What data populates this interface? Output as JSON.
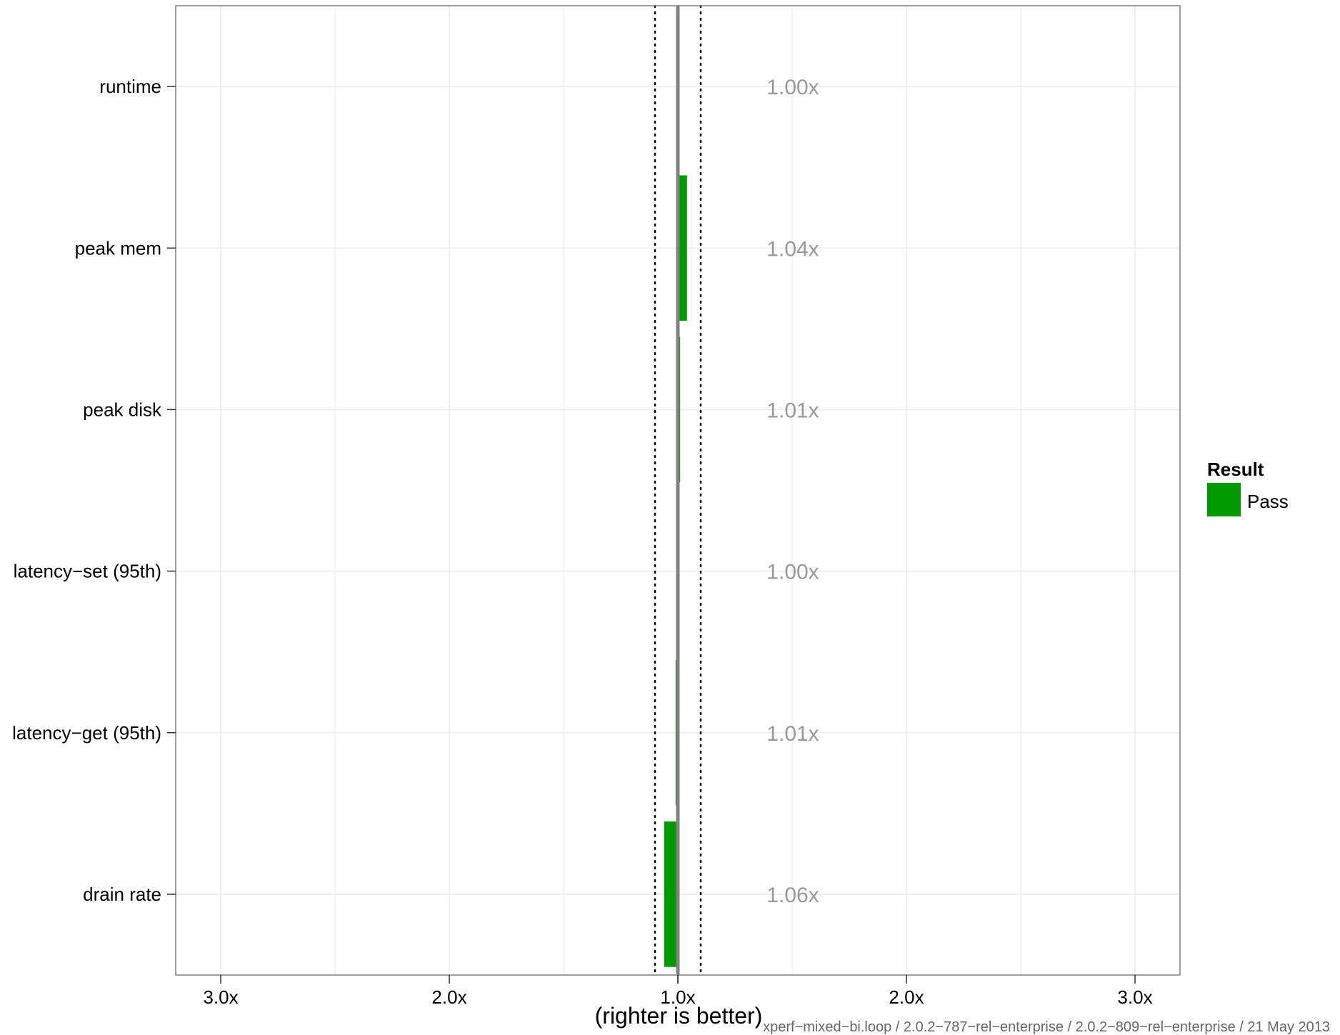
{
  "chart_data": {
    "type": "bar",
    "orientation": "horizontal",
    "categories": [
      "runtime",
      "peak mem",
      "peak disk",
      "latency−set (95th)",
      "latency−get (95th)",
      "drain rate"
    ],
    "series": [
      {
        "name": "Pass",
        "values": [
          1.0,
          1.04,
          1.01,
          1.0,
          -1.01,
          -1.06
        ],
        "labels": [
          "1.00x",
          "1.04x",
          "1.01x",
          "1.00x",
          "1.01x",
          "1.06x"
        ]
      }
    ],
    "xlim": [
      -3.2,
      3.2
    ],
    "x_ticks": [
      -3,
      -2,
      -1,
      1,
      2,
      3
    ],
    "x_tick_labels": [
      "3.0x",
      "2.0x",
      "1.0x",
      "",
      "2.0x",
      "3.0x"
    ],
    "x_minor_gridlines": [
      -2.5,
      -1.5,
      1.5,
      2.5
    ],
    "threshold_lines": [
      -1.1,
      1.1
    ],
    "xlabel": "(righter is better)",
    "ylabel": "",
    "grid": true,
    "legend": {
      "title": "Result",
      "position": "right",
      "entries": [
        {
          "label": "Pass",
          "color": "#009900"
        }
      ]
    },
    "footer": "xperf−mixed−bi.loop / 2.0.2−787−rel−enterprise / 2.0.2−809−rel−enterprise / 21 May 2013"
  },
  "colors": {
    "pass": "#009900",
    "center_line": "#808080",
    "ratio_text": "#999999",
    "footer_text": "#666666",
    "grid": "#ebebeb",
    "panel_border": "#7f7f7f"
  }
}
